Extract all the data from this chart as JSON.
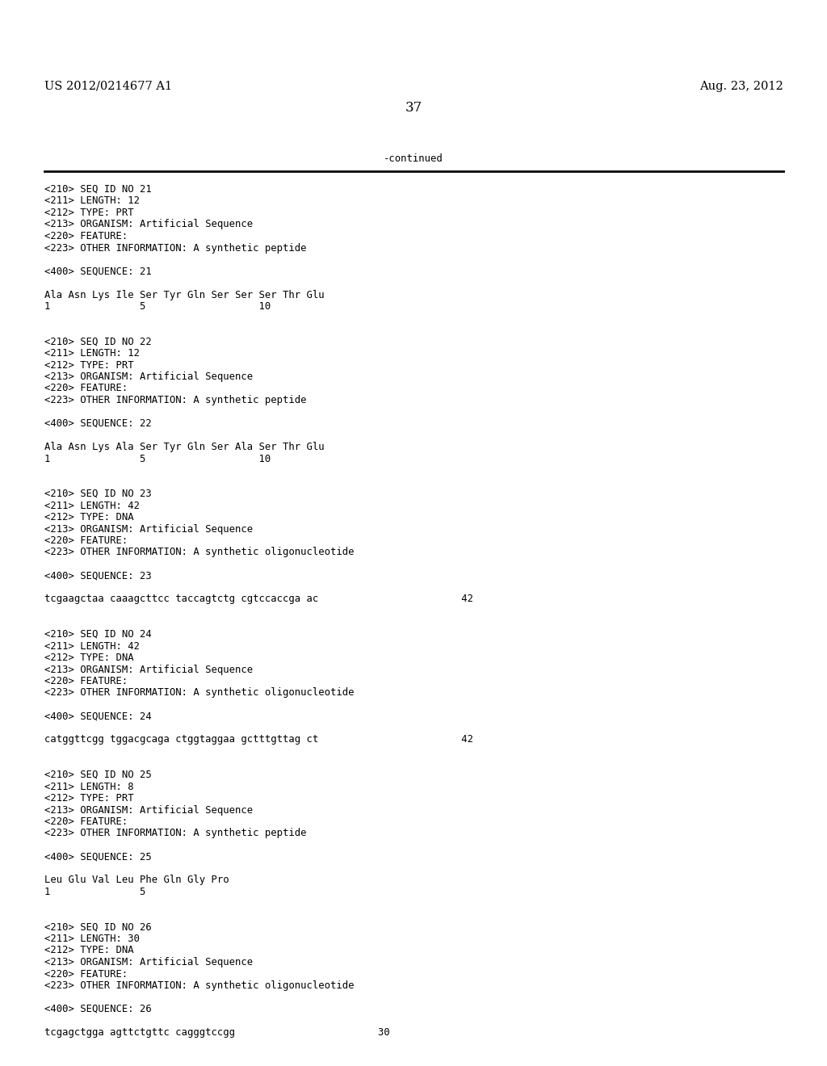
{
  "background_color": "#ffffff",
  "header_left": "US 2012/0214677 A1",
  "header_right": "Aug. 23, 2012",
  "page_number": "37",
  "continued_text": "-continued",
  "font_size_header": 10.5,
  "font_size_page_num": 12.0,
  "font_size_mono": 8.8,
  "content": [
    "<210> SEQ ID NO 21",
    "<211> LENGTH: 12",
    "<212> TYPE: PRT",
    "<213> ORGANISM: Artificial Sequence",
    "<220> FEATURE:",
    "<223> OTHER INFORMATION: A synthetic peptide",
    "",
    "<400> SEQUENCE: 21",
    "",
    "Ala Asn Lys Ile Ser Tyr Gln Ser Ser Ser Thr Glu",
    "1               5                   10",
    "",
    "",
    "<210> SEQ ID NO 22",
    "<211> LENGTH: 12",
    "<212> TYPE: PRT",
    "<213> ORGANISM: Artificial Sequence",
    "<220> FEATURE:",
    "<223> OTHER INFORMATION: A synthetic peptide",
    "",
    "<400> SEQUENCE: 22",
    "",
    "Ala Asn Lys Ala Ser Tyr Gln Ser Ala Ser Thr Glu",
    "1               5                   10",
    "",
    "",
    "<210> SEQ ID NO 23",
    "<211> LENGTH: 42",
    "<212> TYPE: DNA",
    "<213> ORGANISM: Artificial Sequence",
    "<220> FEATURE:",
    "<223> OTHER INFORMATION: A synthetic oligonucleotide",
    "",
    "<400> SEQUENCE: 23",
    "",
    "tcgaagctaa caaagcttcc taccagtctg cgtccaccga ac                        42",
    "",
    "",
    "<210> SEQ ID NO 24",
    "<211> LENGTH: 42",
    "<212> TYPE: DNA",
    "<213> ORGANISM: Artificial Sequence",
    "<220> FEATURE:",
    "<223> OTHER INFORMATION: A synthetic oligonucleotide",
    "",
    "<400> SEQUENCE: 24",
    "",
    "catggttcgg tggacgcaga ctggtaggaa gctttgttag ct                        42",
    "",
    "",
    "<210> SEQ ID NO 25",
    "<211> LENGTH: 8",
    "<212> TYPE: PRT",
    "<213> ORGANISM: Artificial Sequence",
    "<220> FEATURE:",
    "<223> OTHER INFORMATION: A synthetic peptide",
    "",
    "<400> SEQUENCE: 25",
    "",
    "Leu Glu Val Leu Phe Gln Gly Pro",
    "1               5",
    "",
    "",
    "<210> SEQ ID NO 26",
    "<211> LENGTH: 30",
    "<212> TYPE: DNA",
    "<213> ORGANISM: Artificial Sequence",
    "<220> FEATURE:",
    "<223> OTHER INFORMATION: A synthetic oligonucleotide",
    "",
    "<400> SEQUENCE: 26",
    "",
    "tcgagctgga agttctgttc cagggtccgg                        30"
  ]
}
